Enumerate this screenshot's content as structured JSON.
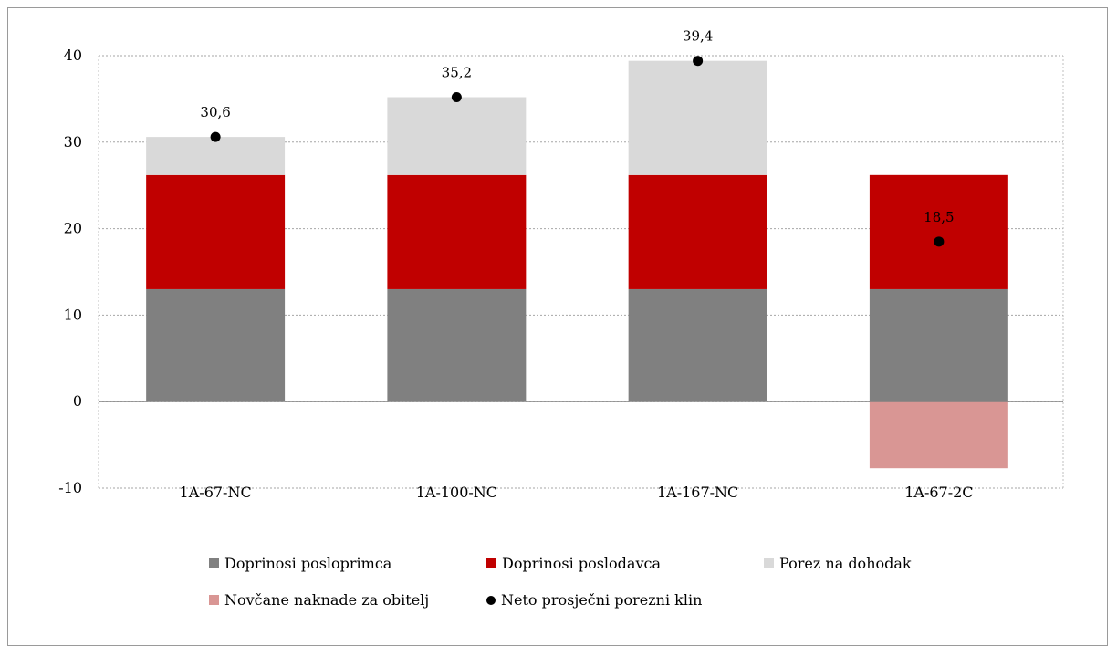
{
  "chart_data": {
    "type": "bar",
    "stacked": true,
    "categories": [
      "1A-67-NC",
      "1A-100-NC",
      "1A-167-NC",
      "1A-67-2C"
    ],
    "series": [
      {
        "name": "Doprinosi posloprimca",
        "color": "#808080",
        "values": [
          13.0,
          13.0,
          13.0,
          13.0
        ]
      },
      {
        "name": "Doprinosi poslodavca",
        "color": "#c00000",
        "values": [
          13.2,
          13.2,
          13.2,
          13.2
        ]
      },
      {
        "name": "Porez na dohodak",
        "color": "#d9d9d9",
        "values": [
          4.4,
          9.0,
          13.2,
          0.0
        ]
      },
      {
        "name": "Novčane naknade za obitelj",
        "color": "#d99694",
        "values": [
          0.0,
          0.0,
          0.0,
          -7.7
        ]
      }
    ],
    "markers": {
      "name": "Neto prosječni porezni klin",
      "color": "#000000",
      "values": [
        30.6,
        35.2,
        39.4,
        18.5
      ],
      "labels": [
        "30,6",
        "35,2",
        "39,4",
        "18,5"
      ]
    },
    "yticks": [
      "-10",
      "0",
      "10",
      "20",
      "30",
      "40"
    ],
    "ylim": [
      -10,
      40
    ],
    "grid": true,
    "legend_position": "bottom"
  }
}
